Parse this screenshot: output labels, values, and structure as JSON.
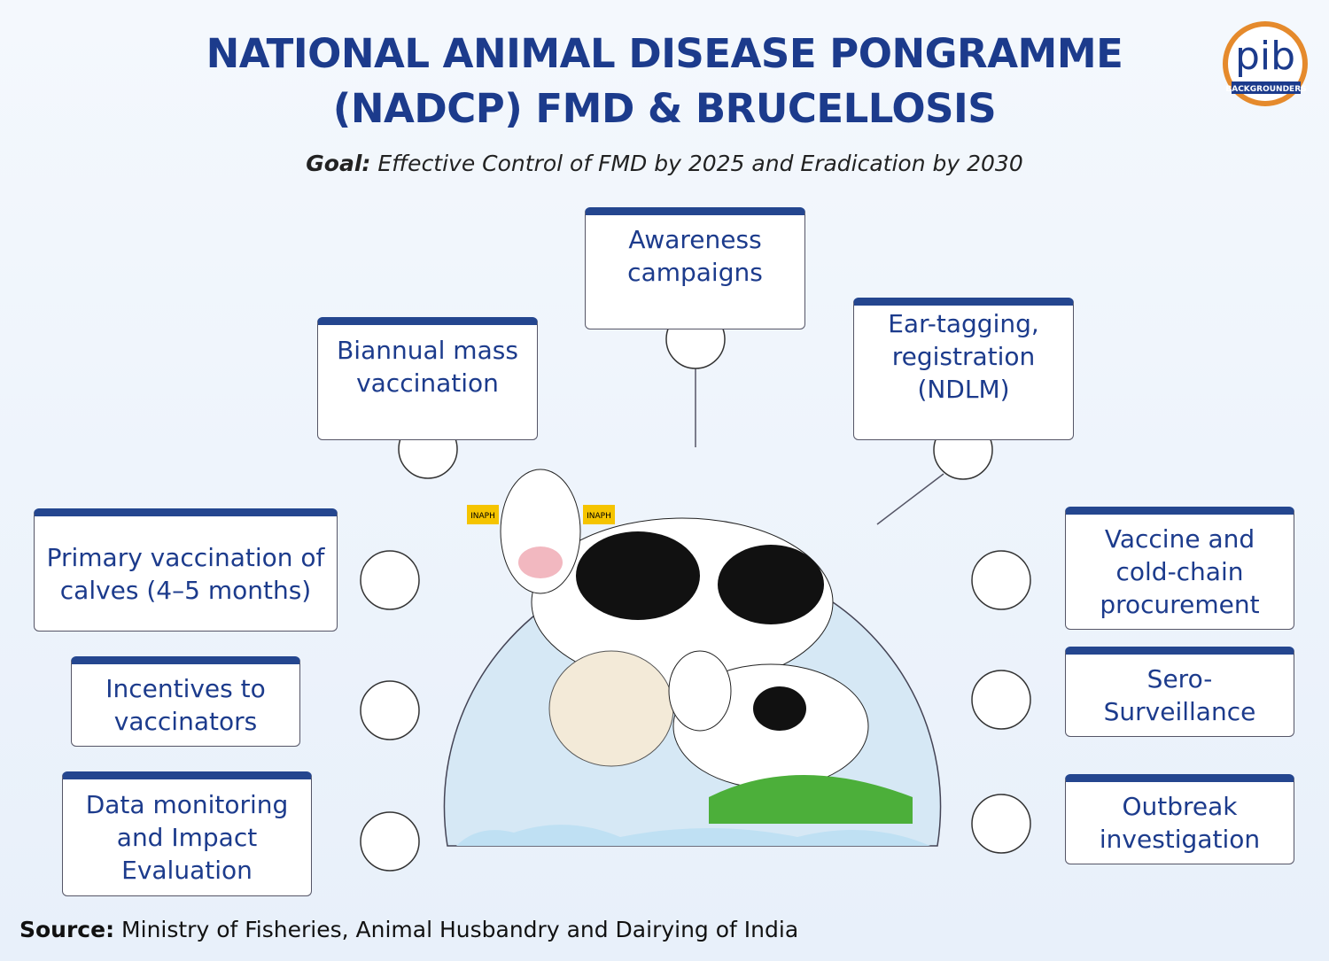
{
  "header": {
    "title_lines": [
      "NATIONAL ANIMAL DISEASE PONGRAMME",
      "(NADCP) FMD & BRUCELLOSIS"
    ],
    "goal_label": "Goal:",
    "goal_text": "Effective Control of FMD by 2025 and Eradication by 2030"
  },
  "logo": {
    "text": "pib",
    "subtext": "BACKGROUNDERS"
  },
  "ear_tags": [
    "INAPH",
    "INAPH"
  ],
  "boxes": [
    {
      "label": "Awareness campaigns"
    },
    {
      "label": "Biannual mass vaccination"
    },
    {
      "label": "Ear-tagging, registration (NDLM)"
    },
    {
      "label": "Primary vaccination of calves (4–5 months)"
    },
    {
      "label": "Incentives to vaccinators"
    },
    {
      "label": "Data monitoring and Impact Evaluation"
    },
    {
      "label": "Vaccine and cold-chain procurement"
    },
    {
      "label": "Sero-Surveillance"
    },
    {
      "label": "Outbreak investigation"
    }
  ],
  "source": {
    "label": "Source:",
    "text": "Ministry of Fisheries, Animal Husbandry and Dairying of India"
  }
}
